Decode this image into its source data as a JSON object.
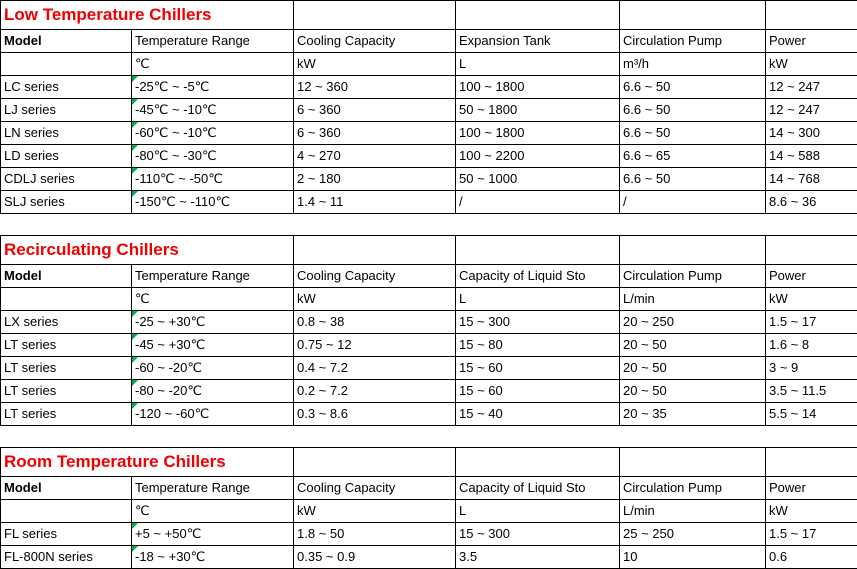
{
  "colors": {
    "title": "#ee0000",
    "border": "#000000",
    "flag": "#00b050",
    "background": "#ffffff"
  },
  "sections": [
    {
      "title": "Low Temperature Chillers",
      "headers": [
        "Model",
        "Temperature Range",
        "Cooling Capacity",
        "Expansion Tank",
        "Circulation Pump",
        "Power"
      ],
      "units": [
        "",
        "℃",
        "kW",
        "L",
        "m³/h",
        "kW"
      ],
      "rows": [
        [
          "LC series",
          "-25℃ ~ -5℃",
          "12 ~ 360",
          "100 ~ 1800",
          "6.6 ~ 50",
          "12 ~ 247"
        ],
        [
          "LJ series",
          "-45℃ ~ -10℃",
          "6 ~ 360",
          "50 ~ 1800",
          "6.6 ~ 50",
          "12 ~ 247"
        ],
        [
          "LN series",
          "-60℃ ~ -10℃",
          "6 ~ 360",
          "100 ~ 1800",
          "6.6 ~ 50",
          "14 ~ 300"
        ],
        [
          "LD series",
          "-80℃ ~ -30℃",
          "4 ~ 270",
          "100 ~ 2200",
          "6.6 ~ 65",
          "14 ~ 588"
        ],
        [
          "CDLJ series",
          "-110℃ ~ -50℃",
          "2 ~ 180",
          "50 ~ 1000",
          "6.6 ~ 50",
          "14 ~ 768"
        ],
        [
          "SLJ series",
          "-150℃ ~ -110℃",
          "1.4 ~ 11",
          "/",
          "/",
          "8.6 ~ 36"
        ]
      ]
    },
    {
      "title": "Recirculating Chillers",
      "headers": [
        "Model",
        "Temperature Range",
        "Cooling Capacity",
        "Capacity of Liquid Sto",
        "Circulation Pump",
        "Power"
      ],
      "units": [
        "",
        "℃",
        "kW",
        "L",
        "L/min",
        "kW"
      ],
      "rows": [
        [
          "LX series",
          "-25 ~ +30℃",
          "0.8 ~ 38",
          "15 ~ 300",
          "20 ~ 250",
          "1.5 ~ 17"
        ],
        [
          "LT series",
          "-45 ~ +30℃",
          "0.75 ~ 12",
          "15 ~ 80",
          "20 ~ 50",
          "1.6 ~ 8"
        ],
        [
          "LT series",
          "-60 ~ -20℃",
          "0.4 ~ 7.2",
          "15 ~ 60",
          "20 ~ 50",
          "3 ~ 9"
        ],
        [
          "LT series",
          "-80 ~ -20℃",
          "0.2 ~ 7.2",
          "15 ~ 60",
          "20 ~ 50",
          "3.5 ~ 11.5"
        ],
        [
          "LT series",
          "-120 ~ -60℃",
          "0.3 ~ 8.6",
          "15 ~ 40",
          "20 ~ 35",
          "5.5 ~ 14"
        ]
      ]
    },
    {
      "title": "Room Temperature Chillers",
      "headers": [
        "Model",
        "Temperature Range",
        "Cooling Capacity",
        "Capacity of Liquid Sto",
        "Circulation Pump",
        "Power"
      ],
      "units": [
        "",
        "℃",
        "kW",
        "L",
        "L/min",
        "kW"
      ],
      "rows": [
        [
          "FL series",
          "+5 ~ +50℃",
          "1.8 ~ 50",
          "15 ~ 300",
          "25 ~ 250",
          "1.5 ~ 17"
        ],
        [
          "FL-800N series",
          "-18 ~ +30℃",
          "0.35 ~ 0.9",
          "3.5",
          "10",
          "0.6"
        ]
      ]
    }
  ]
}
